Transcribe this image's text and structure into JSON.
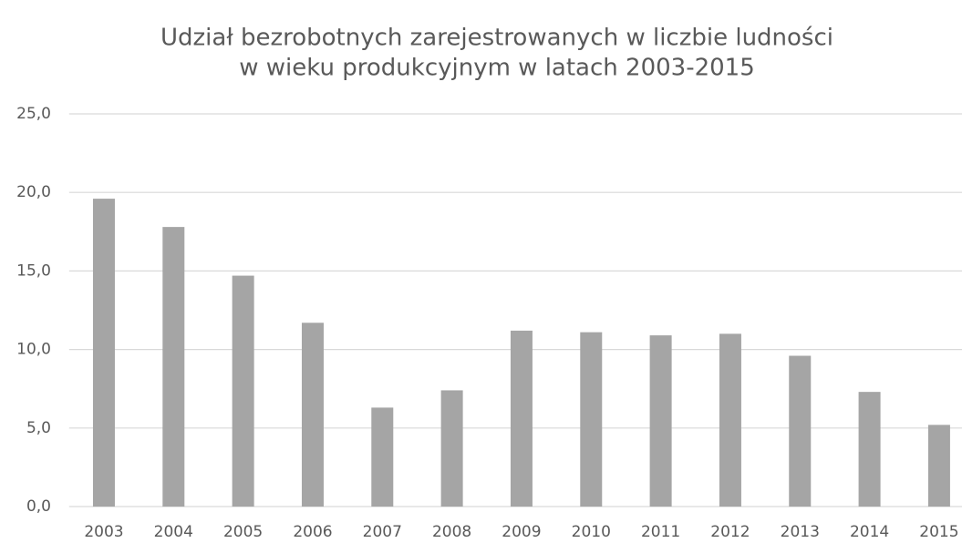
{
  "chart_data": {
    "type": "bar",
    "title": [
      "Udział bezrobotnych zarejestrowanych w liczbie ludności",
      "w wieku produkcyjnym w latach 2003-2015"
    ],
    "categories": [
      "2003",
      "2004",
      "2005",
      "2006",
      "2007",
      "2008",
      "2009",
      "2010",
      "2011",
      "2012",
      "2013",
      "2014",
      "2015"
    ],
    "values": [
      19.6,
      17.8,
      14.7,
      11.7,
      6.3,
      7.4,
      11.2,
      11.1,
      10.9,
      11.0,
      9.6,
      7.3,
      5.2
    ],
    "color": "#a5a5a5",
    "ylim": [
      0,
      25
    ],
    "yticks": [
      {
        "value": 0,
        "label": "0,0"
      },
      {
        "value": 5,
        "label": "5,0"
      },
      {
        "value": 10,
        "label": "10,0"
      },
      {
        "value": 15,
        "label": "15,0"
      },
      {
        "value": 20,
        "label": "20,0"
      },
      {
        "value": 25,
        "label": "25,0"
      }
    ],
    "grid": true
  }
}
